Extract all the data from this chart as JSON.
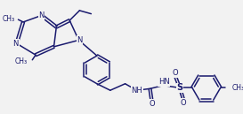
{
  "bg_color": "#f2f2f2",
  "line_color": "#1a1a6e",
  "line_width": 1.1,
  "font_size": 6.0,
  "figsize": [
    2.73,
    1.29
  ],
  "dpi": 100,
  "xlim": [
    0,
    273
  ],
  "ylim": [
    129,
    0
  ]
}
